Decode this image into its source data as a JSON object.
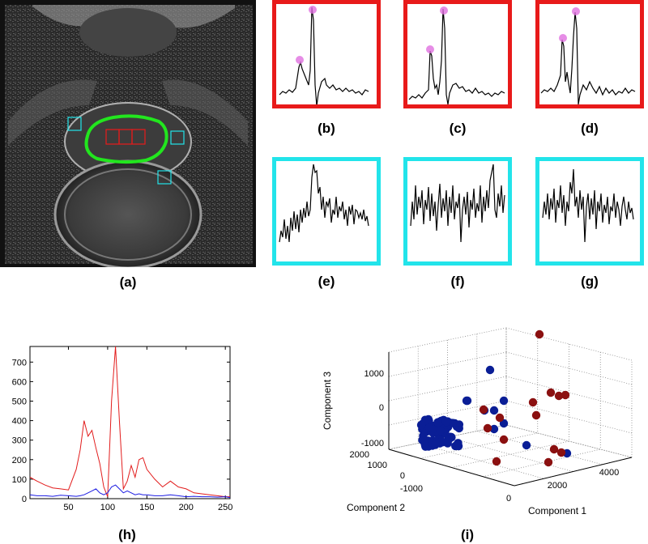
{
  "labels": {
    "a": "(a)",
    "b": "(b)",
    "c": "(c)",
    "d": "(d)",
    "e": "(e)",
    "f": "(f)",
    "g": "(g)",
    "h": "(h)",
    "i": "(i)"
  },
  "colors": {
    "tumor_box": "#e81a1a",
    "normal_box": "#22e4ea",
    "prostate_contour": "#22e61e",
    "peak_marker": "#e070e0",
    "spectrum_red": "#e21c1c",
    "spectrum_blue": "#1c1ce2",
    "cluster_red": "#8b1010",
    "cluster_blue": "#0a1e96"
  },
  "chart_data": [
    {
      "type": "line",
      "panel": "(h)",
      "x": [
        1,
        10,
        20,
        30,
        40,
        50,
        60,
        65,
        70,
        75,
        80,
        85,
        90,
        95,
        100,
        105,
        110,
        115,
        120,
        125,
        130,
        135,
        140,
        145,
        150,
        160,
        170,
        180,
        190,
        200,
        210,
        220,
        230,
        240,
        250,
        256
      ],
      "series": [
        {
          "color": "#e21c1c",
          "values": [
            110,
            90,
            70,
            55,
            50,
            45,
            150,
            250,
            400,
            320,
            350,
            260,
            180,
            60,
            10,
            500,
            780,
            400,
            50,
            90,
            170,
            110,
            200,
            210,
            150,
            100,
            60,
            90,
            60,
            50,
            30,
            25,
            20,
            15,
            10,
            10
          ]
        },
        {
          "color": "#1c1ce2",
          "values": [
            20,
            15,
            15,
            12,
            18,
            15,
            12,
            15,
            20,
            30,
            40,
            50,
            30,
            20,
            30,
            60,
            70,
            50,
            30,
            40,
            30,
            20,
            25,
            20,
            20,
            15,
            15,
            20,
            15,
            10,
            12,
            10,
            10,
            8,
            10,
            5
          ]
        }
      ],
      "xticks": [
        "50",
        "100",
        "150",
        "200",
        "250"
      ],
      "yticks": [
        "0",
        "100",
        "200",
        "300",
        "400",
        "500",
        "600",
        "700"
      ],
      "xlim": [
        1,
        256
      ],
      "ylim": [
        0,
        780
      ]
    },
    {
      "type": "scatter",
      "panel": "(i)",
      "xlabel": "Component 1",
      "ylabel": "Component 2",
      "zlabel": "Component 3",
      "x_ticks": [
        "0",
        "2000",
        "4000"
      ],
      "y_ticks": [
        "-1000",
        "0",
        "1000",
        "2000"
      ],
      "z_ticks": [
        "-1000",
        "0",
        "1000"
      ],
      "series": [
        {
          "color": "#8b1010",
          "count": 14
        },
        {
          "color": "#0a1e96",
          "count": 90
        }
      ]
    }
  ]
}
